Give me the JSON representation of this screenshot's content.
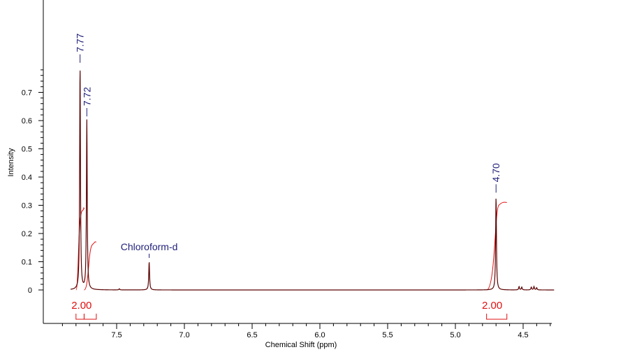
{
  "chart_data": {
    "type": "line",
    "xlabel": "Chemical Shift (ppm)",
    "ylabel": "Intensity",
    "x_reversed": true,
    "xlim": [
      7.98,
      4.27
    ],
    "ylim": [
      -0.12,
      1.0
    ],
    "x_ticks": [
      "7.5",
      "7.0",
      "6.5",
      "6.0",
      "5.5",
      "5.0",
      "4.5"
    ],
    "y_ticks": [
      "0",
      "0.1",
      "0.2",
      "0.3",
      "0.4",
      "0.5",
      "0.6",
      "0.7"
    ],
    "series": [
      {
        "peaks": [
          {
            "ppm": 7.77,
            "height": 0.79
          },
          {
            "ppm": 7.72,
            "height": 0.6
          },
          {
            "ppm": 7.48,
            "height": 0.004
          },
          {
            "ppm": 7.26,
            "height": 0.1
          },
          {
            "ppm": 4.7,
            "height": 0.33
          },
          {
            "ppm": 4.53,
            "height": 0.012
          },
          {
            "ppm": 4.51,
            "height": 0.01
          },
          {
            "ppm": 4.44,
            "height": 0.01
          },
          {
            "ppm": 4.42,
            "height": 0.012
          },
          {
            "ppm": 4.4,
            "height": 0.008
          }
        ]
      }
    ],
    "peak_labels": [
      {
        "label": "7.77",
        "ppm": 7.77
      },
      {
        "label": "7.72",
        "ppm": 7.72
      },
      {
        "label": "4.70",
        "ppm": 4.7
      }
    ],
    "solvent": {
      "label": "Chloroform-d",
      "ppm": 7.26
    },
    "integrals": [
      {
        "label": "2.00",
        "from_ppm": 7.8,
        "to_ppm": 7.74,
        "rise": 0.29
      },
      {
        "label": "",
        "from_ppm": 7.74,
        "to_ppm": 7.65,
        "rise": 0.17
      },
      {
        "label": "2.00",
        "from_ppm": 4.77,
        "to_ppm": 4.62,
        "rise": 0.31
      }
    ],
    "colors": {
      "spectrum": "#5a0000",
      "integral": "#e01010",
      "peak_label": "#1f1f7a",
      "axis": "#000000"
    }
  }
}
